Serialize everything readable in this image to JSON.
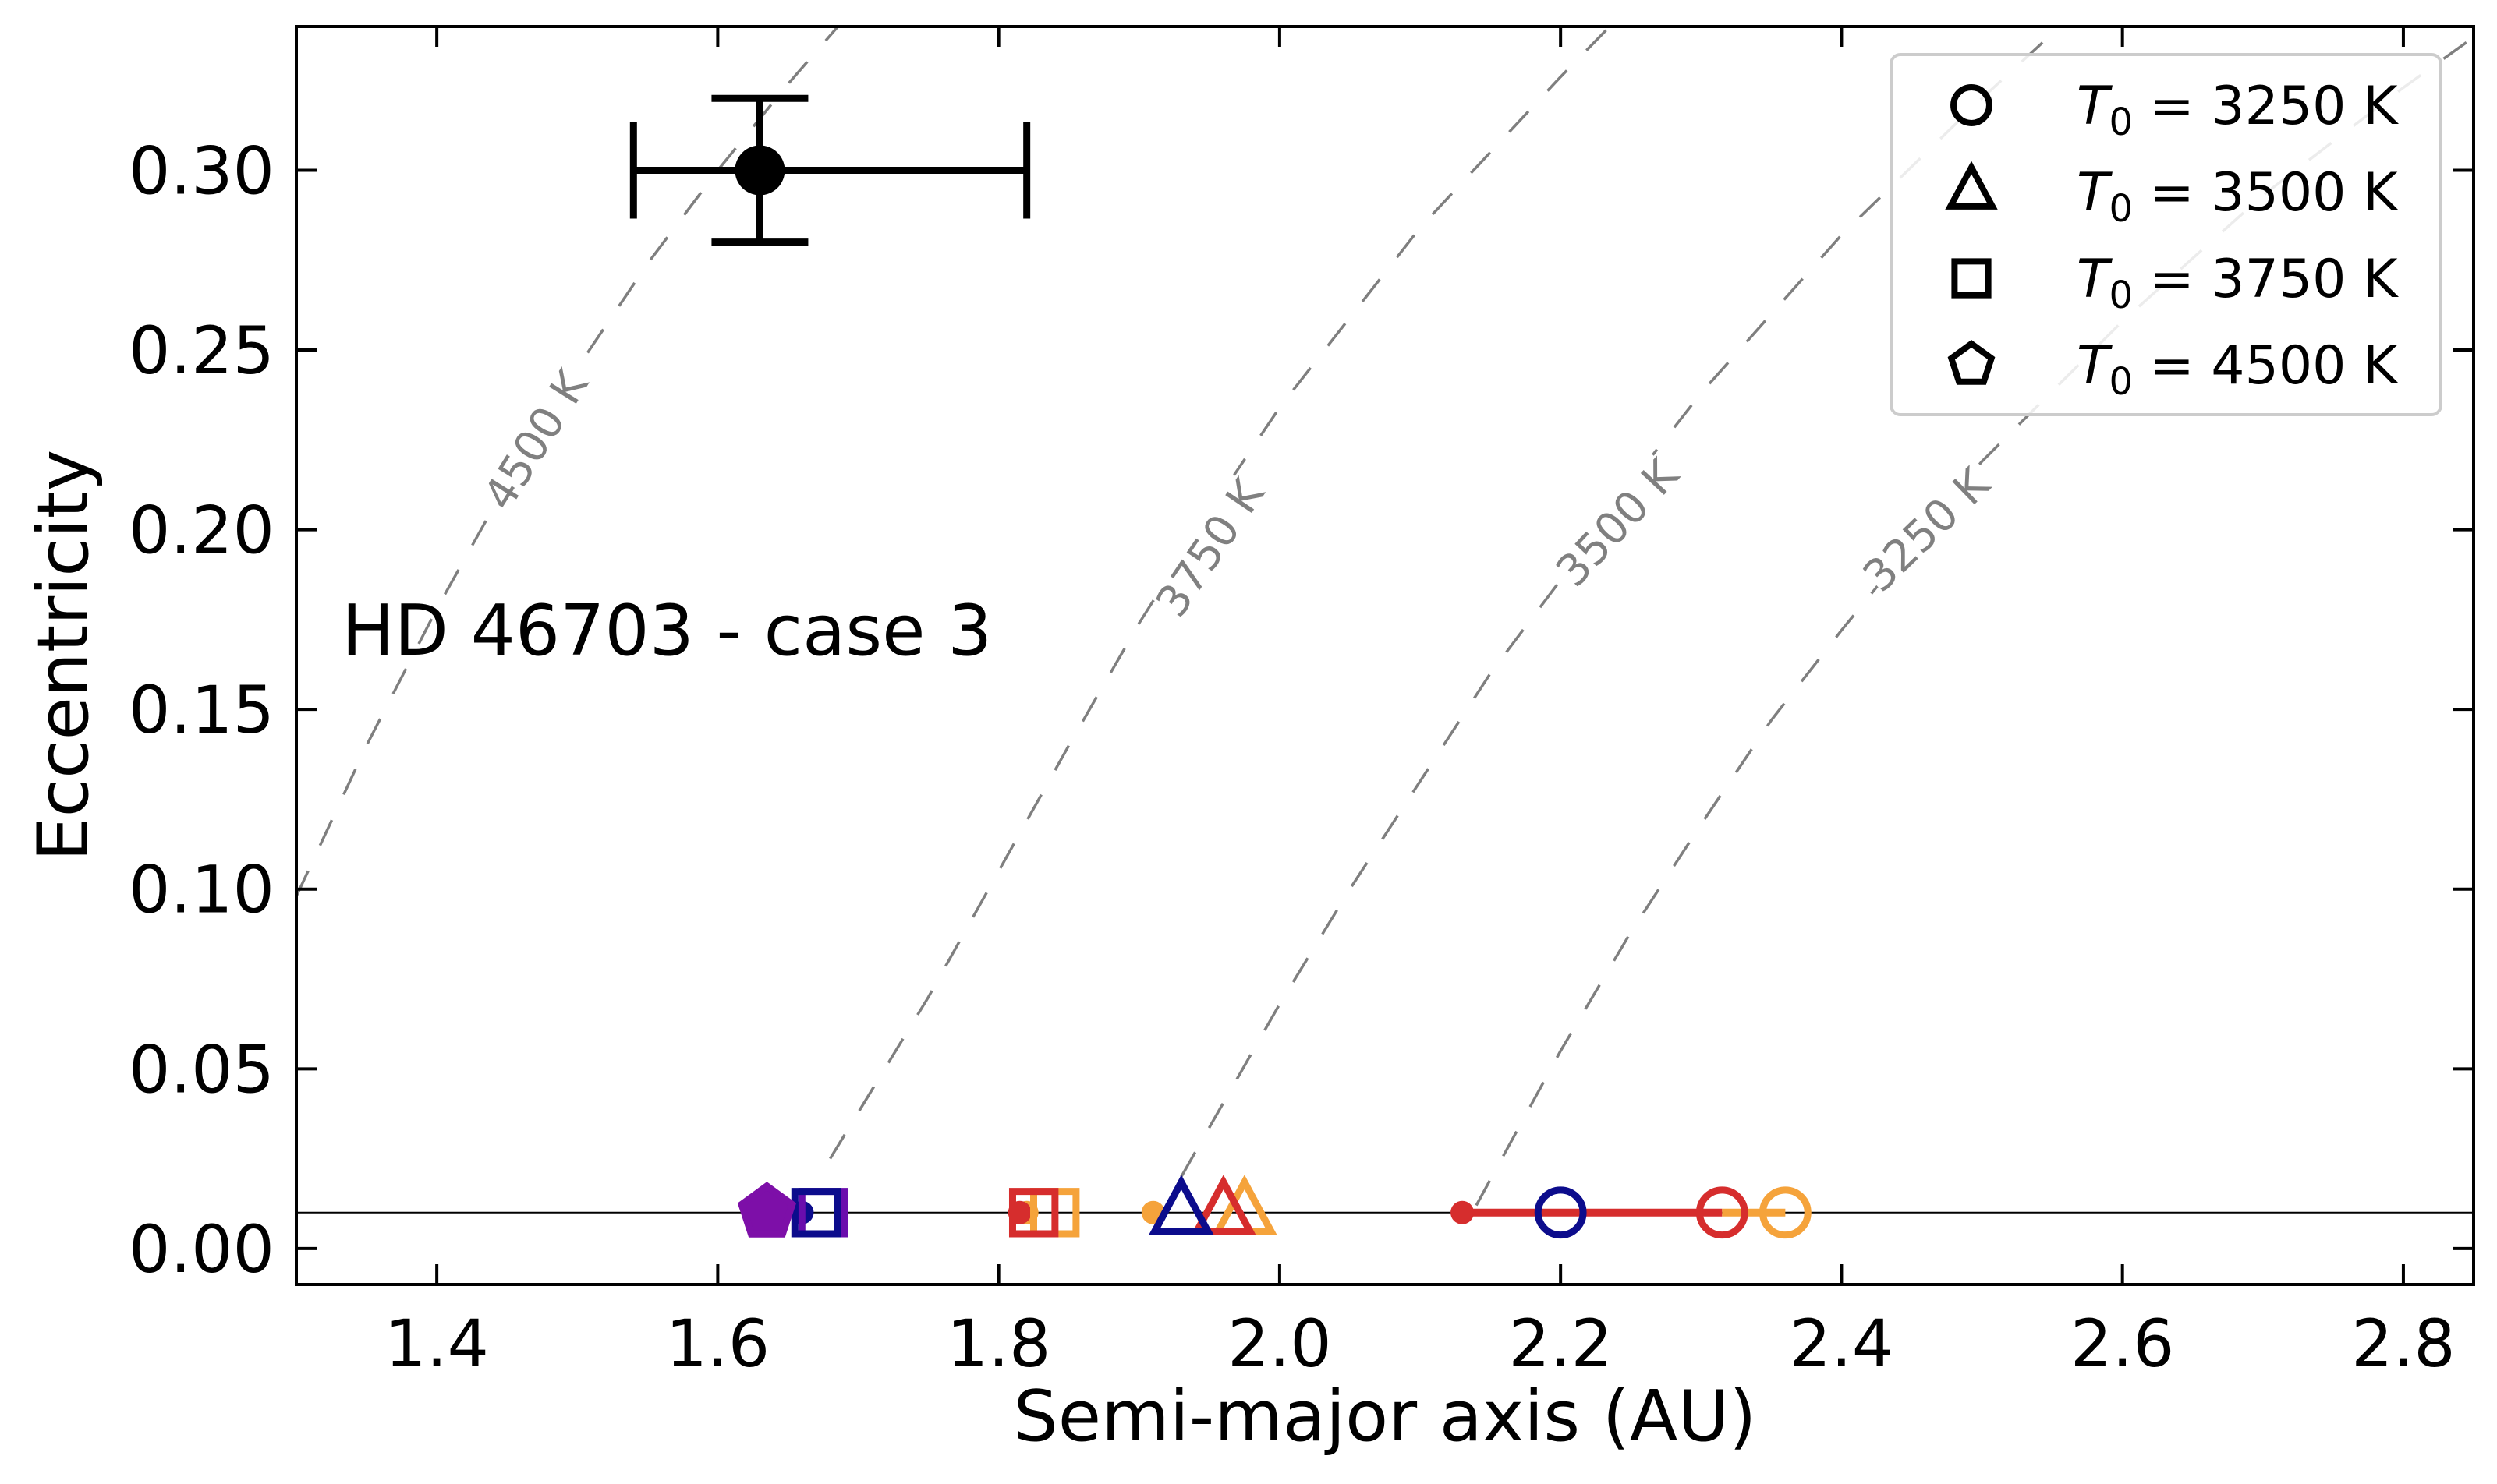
{
  "chart_data": {
    "type": "scatter",
    "xlabel": "Semi-major axis (AU)",
    "ylabel": "Eccentricity",
    "xlim": [
      1.3,
      2.85
    ],
    "ylim": [
      -0.01,
      0.34
    ],
    "xticks": [
      1.4,
      1.6,
      1.8,
      2.0,
      2.2,
      2.4,
      2.6,
      2.8
    ],
    "yticks": [
      0.0,
      0.05,
      0.1,
      0.15,
      0.2,
      0.25,
      0.3
    ],
    "xtick_labels": [
      "1.4",
      "1.6",
      "1.8",
      "2.0",
      "2.2",
      "2.4",
      "2.6",
      "2.8"
    ],
    "ytick_labels": [
      "0.00",
      "0.05",
      "0.10",
      "0.15",
      "0.20",
      "0.25",
      "0.30"
    ],
    "grid": false,
    "annotation": "HD 46703 - case 3",
    "observed": {
      "x": 1.63,
      "y": 0.3,
      "xerr": [
        0.09,
        0.19
      ],
      "yerr": 0.02
    },
    "reference_line_y": 0.01,
    "curves": [
      {
        "label": "4500 K",
        "points": [
          [
            1.3,
            0.098
          ],
          [
            1.35,
            0.14
          ],
          [
            1.4,
            0.178
          ],
          [
            1.45,
            0.213
          ],
          [
            1.5,
            0.245
          ],
          [
            1.55,
            0.274
          ],
          [
            1.6,
            0.3
          ],
          [
            1.65,
            0.324
          ],
          [
            1.69,
            0.342
          ]
        ]
      },
      {
        "label": "3750 K",
        "points": [
          [
            1.68,
            0.025
          ],
          [
            1.75,
            0.07
          ],
          [
            1.8,
            0.105
          ],
          [
            1.85,
            0.14
          ],
          [
            1.9,
            0.174
          ],
          [
            1.95,
            0.205
          ],
          [
            2.0,
            0.234
          ],
          [
            2.1,
            0.284
          ],
          [
            2.2,
            0.326
          ],
          [
            2.24,
            0.342
          ]
        ]
      },
      {
        "label": "3500 K",
        "points": [
          [
            1.93,
            0.02
          ],
          [
            2.0,
            0.068
          ],
          [
            2.05,
            0.1
          ],
          [
            2.1,
            0.13
          ],
          [
            2.15,
            0.16
          ],
          [
            2.2,
            0.186
          ],
          [
            2.25,
            0.213
          ],
          [
            2.3,
            0.238
          ],
          [
            2.4,
            0.282
          ],
          [
            2.5,
            0.32
          ],
          [
            2.55,
            0.338
          ]
        ]
      },
      {
        "label": "3250 K",
        "points": [
          [
            2.14,
            0.012
          ],
          [
            2.2,
            0.055
          ],
          [
            2.25,
            0.088
          ],
          [
            2.3,
            0.118
          ],
          [
            2.35,
            0.147
          ],
          [
            2.4,
            0.172
          ],
          [
            2.45,
            0.196
          ],
          [
            2.5,
            0.219
          ],
          [
            2.6,
            0.258
          ],
          [
            2.7,
            0.293
          ],
          [
            2.8,
            0.323
          ],
          [
            2.85,
            0.337
          ]
        ]
      }
    ],
    "legend": {
      "placement": "top-right",
      "entries": [
        {
          "marker": "circle",
          "label": "3250 K"
        },
        {
          "marker": "triangle",
          "label": "3500 K"
        },
        {
          "marker": "square",
          "label": "3750 K"
        },
        {
          "marker": "pentagon",
          "label": "4500 K"
        }
      ],
      "prefix": "T",
      "subscript": "0",
      "equals": " = "
    },
    "model_points": [
      {
        "marker": "circle",
        "color": "#f5a33b",
        "x": 2.36,
        "y": 0.01
      },
      {
        "marker": "circle",
        "color": "#d62d2d",
        "x": 2.315,
        "y": 0.01
      },
      {
        "marker": "circle",
        "color": "#0c0c8c",
        "x": 2.2,
        "y": 0.01
      },
      {
        "marker": "triangle",
        "color": "#f5a33b",
        "x": 1.975,
        "y": 0.01
      },
      {
        "marker": "triangle",
        "color": "#d62d2d",
        "x": 1.96,
        "y": 0.01
      },
      {
        "marker": "triangle",
        "color": "#0c0c8c",
        "x": 1.93,
        "y": 0.01
      },
      {
        "marker": "square",
        "color": "#f5a33b",
        "x": 1.84,
        "y": 0.01
      },
      {
        "marker": "square",
        "color": "#d62d2d",
        "x": 1.825,
        "y": 0.01
      },
      {
        "marker": "square",
        "color": "#6a0dad",
        "x": 1.675,
        "y": 0.01
      },
      {
        "marker": "square",
        "color": "#0c0c8c",
        "x": 1.67,
        "y": 0.01
      },
      {
        "marker": "pentagon",
        "color": "#7d0fa8",
        "x": 1.635,
        "y": 0.01
      }
    ],
    "model_dots": [
      {
        "color": "#f5a33b",
        "x": 1.91,
        "y": 0.01
      },
      {
        "color": "#f5a33b",
        "x": 1.82,
        "y": 0.01
      },
      {
        "color": "#d62d2d",
        "x": 1.815,
        "y": 0.01
      },
      {
        "color": "#d62d2d",
        "x": 2.13,
        "y": 0.01
      },
      {
        "color": "#0c0c8c",
        "x": 1.66,
        "y": 0.01
      }
    ],
    "model_segments": [
      {
        "color": "#d62d2d",
        "x1": 2.13,
        "x2": 2.315,
        "y": 0.01
      },
      {
        "color": "#f5a33b",
        "x1": 2.315,
        "x2": 2.36,
        "y": 0.01
      }
    ]
  }
}
